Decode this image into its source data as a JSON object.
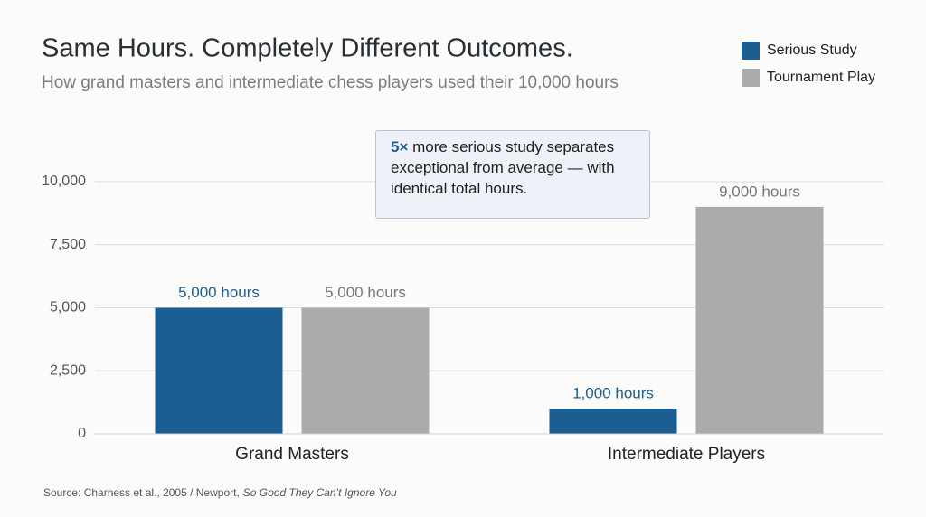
{
  "chart_data": {
    "type": "bar",
    "title": "Same Hours. Completely Different Outcomes.",
    "subtitle": "How grand masters and intermediate chess players used their 10,000 hours",
    "categories": [
      "Grand Masters",
      "Intermediate Players"
    ],
    "series": [
      {
        "name": "Serious Study",
        "color": "#1b5e93",
        "label_color": "#1b5e93",
        "values": [
          5000,
          1000
        ],
        "value_labels": [
          "5,000 hours",
          "1,000 hours"
        ]
      },
      {
        "name": "Tournament Play",
        "color": "#ababab",
        "label_color": "#777777",
        "values": [
          5000,
          9000
        ],
        "value_labels": [
          "5,000 hours",
          "9,000 hours"
        ]
      }
    ],
    "ylim": [
      0,
      10000
    ],
    "yticks": [
      0,
      {
        "value": 2500,
        "label": "2,500"
      },
      {
        "value": 5000,
        "label": "5,000"
      },
      {
        "value": 7500,
        "label": "7,500"
      },
      {
        "value": 10000,
        "label": "10,000"
      }
    ],
    "grid": true,
    "legend": "top-right",
    "annotation": {
      "emphasis": "5×",
      "text": "more serious study separates exceptional from average — with identical total hours."
    },
    "source": {
      "text": "Source: Charness et al., 2005 / Newport,",
      "italic": "So Good They Can’t Ignore You"
    }
  }
}
